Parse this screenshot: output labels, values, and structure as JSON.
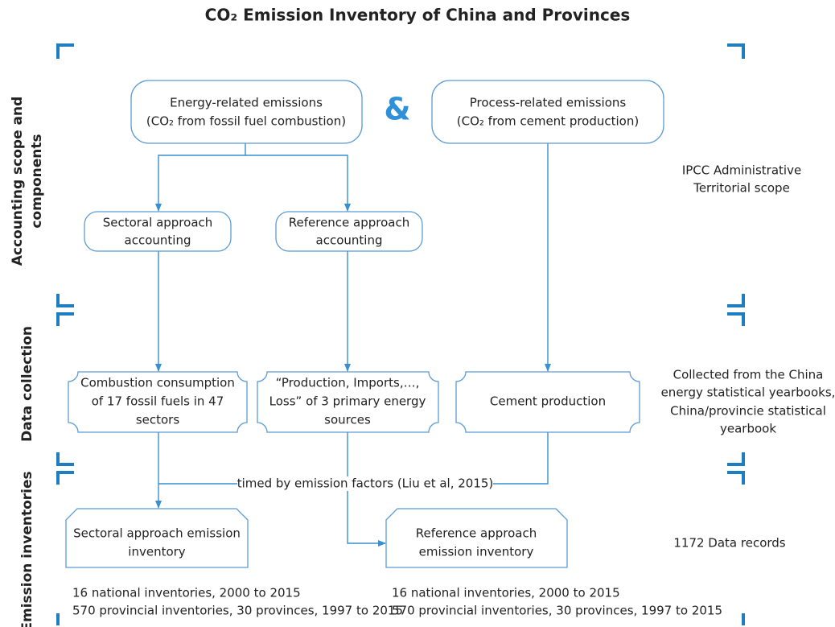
{
  "title": "CO₂ Emission Inventory of China and Provinces",
  "sections": [
    {
      "lines": [
        "Accounting scope and",
        "components"
      ]
    },
    {
      "lines": [
        "Data collection"
      ]
    },
    {
      "lines": [
        "Emission inventories"
      ]
    }
  ],
  "connector": "&",
  "nodes": [
    {
      "lines": [
        "Energy-related emissions",
        "(CO₂ from fossil fuel combustion)"
      ]
    },
    {
      "lines": [
        "Process-related emissions",
        "(CO₂ from cement production)"
      ]
    },
    {
      "lines": [
        "Sectoral approach",
        "accounting"
      ]
    },
    {
      "lines": [
        "Reference approach",
        "accounting"
      ]
    },
    {
      "lines": [
        "Combustion consumption",
        "of 17 fossil fuels in 47",
        "sectors"
      ]
    },
    {
      "lines": [
        "“Production, Imports,…,",
        "Loss” of 3 primary energy",
        "sources"
      ]
    },
    {
      "lines": [
        "Cement production"
      ]
    },
    {
      "lines": [
        "Sectoral approach emission",
        "inventory"
      ]
    },
    {
      "lines": [
        "Reference approach",
        "emission inventory"
      ]
    }
  ],
  "edge_label": "timed by emission factors (Liu et al, 2015)",
  "side_notes": [
    {
      "lines": [
        "IPCC Administrative",
        "Territorial scope"
      ]
    },
    {
      "lines": [
        "Collected from the China",
        "energy statistical yearbooks,",
        "China/provincie statistical",
        "yearbook"
      ]
    },
    {
      "lines": [
        "1172 Data records"
      ]
    }
  ],
  "footnotes": [
    {
      "lines": [
        "16 national inventories, 2000 to 2015",
        "570 provincial inventories, 30 provinces, 1997 to 2015"
      ]
    },
    {
      "lines": [
        "16 national inventories, 2000 to 2015",
        "570 provincial inventories, 30 provinces, 1997 to 2015"
      ]
    }
  ]
}
